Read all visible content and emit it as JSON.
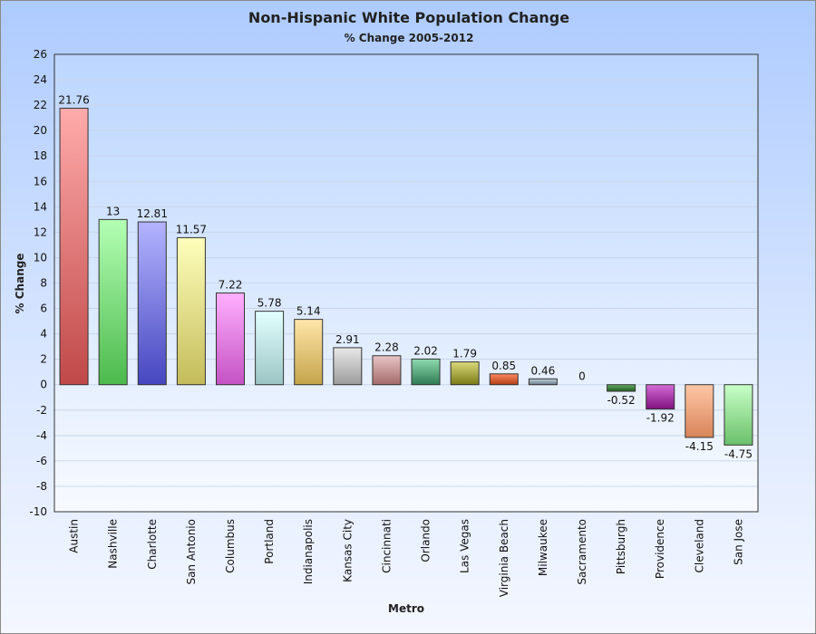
{
  "chart_data": {
    "type": "bar",
    "title": "Non-Hispanic White Population Change",
    "subtitle": "% Change 2005-2012",
    "xlabel": "Metro",
    "ylabel": "% Change",
    "ylim": [
      -10,
      26
    ],
    "ytick_step": 2,
    "grid": true,
    "categories": [
      "Austin",
      "Nashville",
      "Charlotte",
      "San Antonio",
      "Columbus",
      "Portland",
      "Indianapolis",
      "Kansas City",
      "Cincinnati",
      "Orlando",
      "Las Vegas",
      "Virginia Beach",
      "Milwaukee",
      "Sacramento",
      "Pittsburgh",
      "Providence",
      "Cleveland",
      "San Jose"
    ],
    "values": [
      21.76,
      13,
      12.81,
      11.57,
      7.22,
      5.78,
      5.14,
      2.91,
      2.28,
      2.02,
      1.79,
      0.85,
      0.46,
      0,
      -0.52,
      -1.92,
      -4.15,
      -4.75
    ],
    "colors": [
      [
        "#ffabab",
        "#c04848"
      ],
      [
        "#b4ffb4",
        "#4cba4c"
      ],
      [
        "#b4b4ff",
        "#4646c0"
      ],
      [
        "#ffffbc",
        "#c4bc5a"
      ],
      [
        "#ffb0ff",
        "#c452c4"
      ],
      [
        "#e2ffff",
        "#9cc4c4"
      ],
      [
        "#ffe6aa",
        "#c4a44a"
      ],
      [
        "#e8e8e8",
        "#9c9c9c"
      ],
      [
        "#e8c4c4",
        "#a46a6a"
      ],
      [
        "#8edab0",
        "#2e7a52"
      ],
      [
        "#dada7a",
        "#7a7a16"
      ],
      [
        "#ff8a62",
        "#b03e14"
      ],
      [
        "#c2d2dc",
        "#6a7c88"
      ],
      [
        "#cccccc",
        "#888888"
      ],
      [
        "#66aa66",
        "#1e5e1e"
      ],
      [
        "#d66ad6",
        "#7e127e"
      ],
      [
        "#ffc8a6",
        "#d8845a"
      ],
      [
        "#c8ffc8",
        "#6ac06a"
      ]
    ]
  }
}
